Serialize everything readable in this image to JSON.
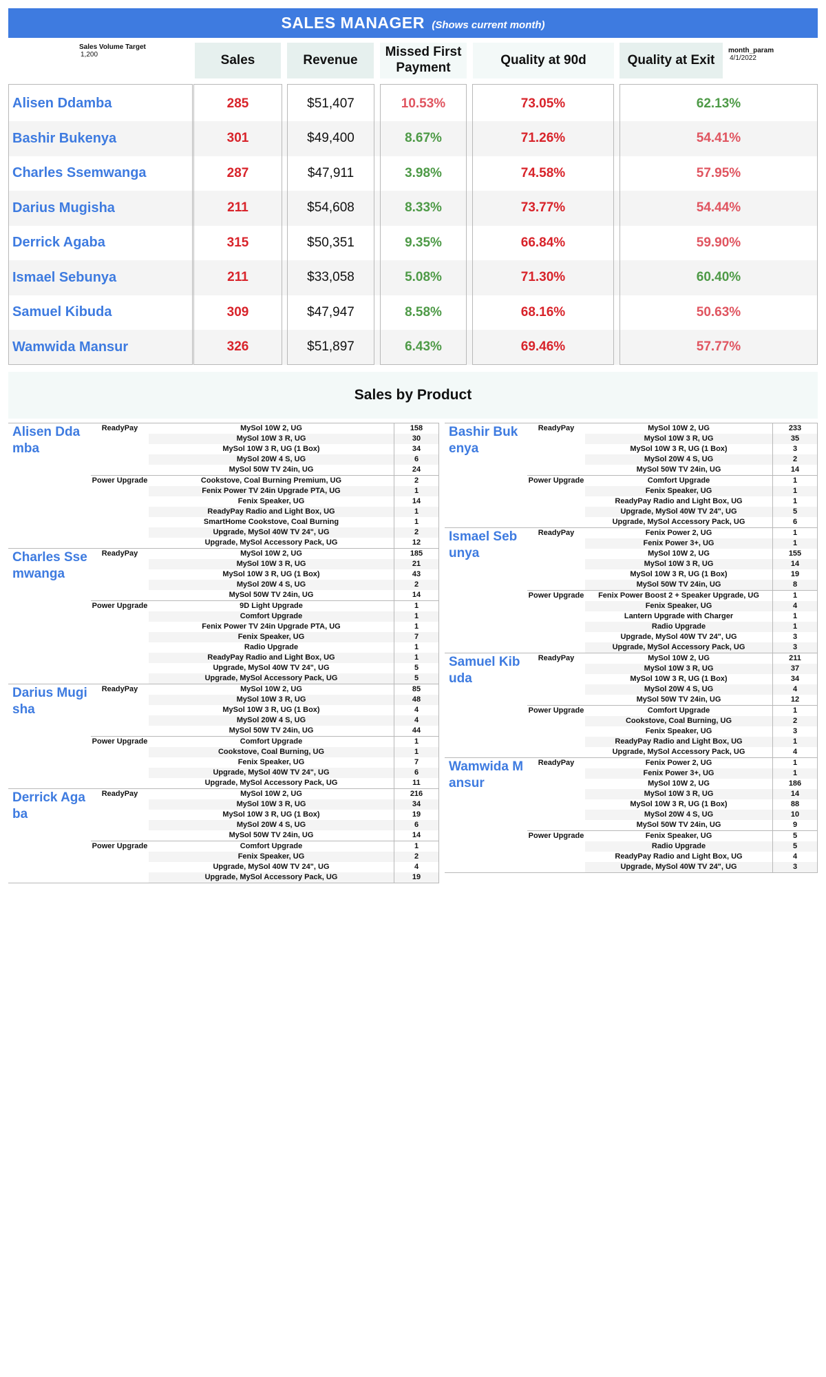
{
  "header": {
    "title": "SALES MANAGER",
    "subtitle": "(Shows current month)",
    "target_label": "Sales Volume Target",
    "target_value": "1,200",
    "param_label": "month_param",
    "param_value": "4/1/2022"
  },
  "columns": {
    "sales": "Sales",
    "revenue": "Revenue",
    "missed": "Missed First Payment",
    "q90": "Quality at 90d",
    "qexit": "Quality at Exit"
  },
  "agents": [
    {
      "name": "Alisen Ddamba",
      "sales": "285",
      "revenue": "$51,407",
      "missed": "10.53%",
      "q90": "73.05%",
      "qexit": "62.13%",
      "missed_color": "#e05560",
      "qexit_color": "#4e9a47"
    },
    {
      "name": "Bashir Bukenya",
      "sales": "301",
      "revenue": "$49,400",
      "missed": "8.67%",
      "q90": "71.26%",
      "qexit": "54.41%",
      "missed_color": "#4e9a47",
      "qexit_color": "#e05560"
    },
    {
      "name": "Charles Ssemwanga",
      "sales": "287",
      "revenue": "$47,911",
      "missed": "3.98%",
      "q90": "74.58%",
      "qexit": "57.95%",
      "missed_color": "#4e9a47",
      "qexit_color": "#e05560"
    },
    {
      "name": "Darius Mugisha",
      "sales": "211",
      "revenue": "$54,608",
      "missed": "8.33%",
      "q90": "73.77%",
      "qexit": "54.44%",
      "missed_color": "#4e9a47",
      "qexit_color": "#e05560"
    },
    {
      "name": "Derrick Agaba",
      "sales": "315",
      "revenue": "$50,351",
      "missed": "9.35%",
      "q90": "66.84%",
      "qexit": "59.90%",
      "missed_color": "#4e9a47",
      "qexit_color": "#e05560"
    },
    {
      "name": "Ismael Sebunya",
      "sales": "211",
      "revenue": "$33,058",
      "missed": "5.08%",
      "q90": "71.30%",
      "qexit": "60.40%",
      "missed_color": "#4e9a47",
      "qexit_color": "#4e9a47"
    },
    {
      "name": "Samuel Kibuda",
      "sales": "309",
      "revenue": "$47,947",
      "missed": "8.58%",
      "q90": "68.16%",
      "qexit": "50.63%",
      "missed_color": "#4e9a47",
      "qexit_color": "#e05560"
    },
    {
      "name": "Wamwida Mansur",
      "sales": "326",
      "revenue": "$51,897",
      "missed": "6.43%",
      "q90": "69.46%",
      "qexit": "57.77%",
      "missed_color": "#4e9a47",
      "qexit_color": "#e05560"
    }
  ],
  "products_title": "Sales by Product",
  "products_left": [
    {
      "name": "Alisen Ddamba",
      "groups": [
        {
          "name": "ReadyPay",
          "items": [
            [
              "MySol 10W 2, UG",
              "158"
            ],
            [
              "MySol 10W 3 R, UG",
              "30"
            ],
            [
              "MySol 10W 3 R, UG (1 Box)",
              "34"
            ],
            [
              "MySol 20W 4 S, UG",
              "6"
            ],
            [
              "MySol 50W TV 24in, UG",
              "24"
            ]
          ]
        },
        {
          "name": "Power Upgrade",
          "items": [
            [
              "Cookstove, Coal Burning Premium, UG",
              "2"
            ],
            [
              "Fenix Power TV 24in Upgrade PTA, UG",
              "1"
            ],
            [
              "Fenix Speaker, UG",
              "14"
            ],
            [
              "ReadyPay Radio and Light Box, UG",
              "1"
            ],
            [
              "SmartHome Cookstove, Coal Burning",
              "1"
            ],
            [
              "Upgrade, MySol 40W TV 24\", UG",
              "2"
            ],
            [
              "Upgrade, MySol Accessory Pack, UG",
              "12"
            ]
          ]
        }
      ]
    },
    {
      "name": "Charles Sse mwanga",
      "groups": [
        {
          "name": "ReadyPay",
          "items": [
            [
              "MySol 10W 2, UG",
              "185"
            ],
            [
              "MySol 10W 3 R, UG",
              "21"
            ],
            [
              "MySol 10W 3 R, UG (1 Box)",
              "43"
            ],
            [
              "MySol 20W 4 S, UG",
              "2"
            ],
            [
              "MySol 50W TV 24in, UG",
              "14"
            ]
          ]
        },
        {
          "name": "Power Upgrade",
          "items": [
            [
              "9D Light Upgrade",
              "1"
            ],
            [
              "Comfort Upgrade",
              "1"
            ],
            [
              "Fenix Power TV 24in Upgrade PTA, UG",
              "1"
            ],
            [
              "Fenix Speaker, UG",
              "7"
            ],
            [
              "Radio Upgrade",
              "1"
            ],
            [
              "ReadyPay Radio and Light Box, UG",
              "1"
            ],
            [
              "Upgrade, MySol 40W TV 24\", UG",
              "5"
            ],
            [
              "Upgrade, MySol Accessory Pack, UG",
              "5"
            ]
          ]
        }
      ]
    },
    {
      "name": "Darius Mugisha",
      "groups": [
        {
          "name": "ReadyPay",
          "items": [
            [
              "MySol 10W 2, UG",
              "85"
            ],
            [
              "MySol 10W 3 R, UG",
              "48"
            ],
            [
              "MySol 10W 3 R, UG (1 Box)",
              "4"
            ],
            [
              "MySol 20W 4 S, UG",
              "4"
            ],
            [
              "MySol 50W TV 24in, UG",
              "44"
            ]
          ]
        },
        {
          "name": "Power Upgrade",
          "items": [
            [
              "Comfort Upgrade",
              "1"
            ],
            [
              "Cookstove, Coal Burning, UG",
              "1"
            ],
            [
              "Fenix Speaker, UG",
              "7"
            ],
            [
              "Upgrade, MySol 40W TV 24\", UG",
              "6"
            ],
            [
              "Upgrade, MySol Accessory Pack, UG",
              "11"
            ]
          ]
        }
      ]
    },
    {
      "name": "Derrick Agaba",
      "groups": [
        {
          "name": "ReadyPay",
          "items": [
            [
              "MySol 10W 2, UG",
              "216"
            ],
            [
              "MySol 10W 3 R, UG",
              "34"
            ],
            [
              "MySol 10W 3 R, UG (1 Box)",
              "19"
            ],
            [
              "MySol 20W 4 S, UG",
              "6"
            ],
            [
              "MySol 50W TV 24in, UG",
              "14"
            ]
          ]
        },
        {
          "name": "Power Upgrade",
          "items": [
            [
              "Comfort Upgrade",
              "1"
            ],
            [
              "Fenix Speaker, UG",
              "2"
            ],
            [
              "Upgrade, MySol 40W TV 24\", UG",
              "4"
            ],
            [
              "Upgrade, MySol Accessory Pack, UG",
              "19"
            ]
          ]
        }
      ]
    }
  ],
  "products_right": [
    {
      "name": "Bashir Bukenya",
      "groups": [
        {
          "name": "ReadyPay",
          "items": [
            [
              "MySol 10W 2, UG",
              "233"
            ],
            [
              "MySol 10W 3 R, UG",
              "35"
            ],
            [
              "MySol 10W 3 R, UG (1 Box)",
              "3"
            ],
            [
              "MySol 20W 4 S, UG",
              "2"
            ],
            [
              "MySol 50W TV 24in, UG",
              "14"
            ]
          ]
        },
        {
          "name": "Power Upgrade",
          "items": [
            [
              "Comfort Upgrade",
              "1"
            ],
            [
              "Fenix Speaker, UG",
              "1"
            ],
            [
              "ReadyPay Radio and Light Box, UG",
              "1"
            ],
            [
              "Upgrade, MySol 40W TV 24\", UG",
              "5"
            ],
            [
              "Upgrade, MySol Accessory Pack, UG",
              "6"
            ]
          ]
        }
      ]
    },
    {
      "name": "Ismael Sebunya",
      "groups": [
        {
          "name": "ReadyPay",
          "items": [
            [
              "Fenix Power 2, UG",
              "1"
            ],
            [
              "Fenix Power 3+, UG",
              "1"
            ],
            [
              "MySol 10W 2, UG",
              "155"
            ],
            [
              "MySol 10W 3 R, UG",
              "14"
            ],
            [
              "MySol 10W 3 R, UG (1 Box)",
              "19"
            ],
            [
              "MySol 50W TV 24in, UG",
              "8"
            ]
          ]
        },
        {
          "name": "Power Upgrade",
          "items": [
            [
              "Fenix Power Boost 2 + Speaker Upgrade, UG",
              "1"
            ],
            [
              "Fenix Speaker, UG",
              "4"
            ],
            [
              "Lantern Upgrade with Charger",
              "1"
            ],
            [
              "Radio Upgrade",
              "1"
            ],
            [
              "Upgrade, MySol 40W TV 24\", UG",
              "3"
            ],
            [
              "Upgrade, MySol Accessory Pack, UG",
              "3"
            ]
          ]
        }
      ]
    },
    {
      "name": "Samuel Kibuda",
      "groups": [
        {
          "name": "ReadyPay",
          "items": [
            [
              "MySol 10W 2, UG",
              "211"
            ],
            [
              "MySol 10W 3 R, UG",
              "37"
            ],
            [
              "MySol 10W 3 R, UG (1 Box)",
              "34"
            ],
            [
              "MySol 20W 4 S, UG",
              "4"
            ],
            [
              "MySol 50W TV 24in, UG",
              "12"
            ]
          ]
        },
        {
          "name": "Power Upgrade",
          "items": [
            [
              "Comfort Upgrade",
              "1"
            ],
            [
              "Cookstove, Coal Burning, UG",
              "2"
            ],
            [
              "Fenix Speaker, UG",
              "3"
            ],
            [
              "ReadyPay Radio and Light Box, UG",
              "1"
            ],
            [
              "Upgrade, MySol Accessory Pack, UG",
              "4"
            ]
          ]
        }
      ]
    },
    {
      "name": "Wamwida Mansur",
      "groups": [
        {
          "name": "ReadyPay",
          "items": [
            [
              "Fenix Power 2, UG",
              "1"
            ],
            [
              "Fenix Power 3+, UG",
              "1"
            ],
            [
              "MySol 10W 2, UG",
              "186"
            ],
            [
              "MySol 10W 3 R, UG",
              "14"
            ],
            [
              "MySol 10W 3 R, UG (1 Box)",
              "88"
            ],
            [
              "MySol 20W 4 S, UG",
              "10"
            ],
            [
              "MySol 50W TV 24in, UG",
              "9"
            ]
          ]
        },
        {
          "name": "Power Upgrade",
          "items": [
            [
              "Fenix Speaker, UG",
              "5"
            ],
            [
              "Radio Upgrade",
              "5"
            ],
            [
              "ReadyPay Radio and Light Box, UG",
              "4"
            ],
            [
              "Upgrade, MySol 40W TV 24\", UG",
              "3"
            ]
          ]
        }
      ]
    }
  ]
}
